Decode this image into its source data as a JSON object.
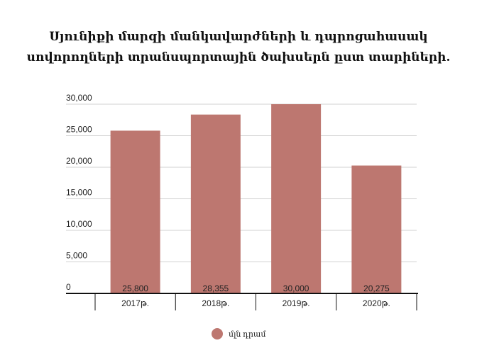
{
  "chart_data": {
    "type": "bar",
    "title_lines": [
      "Սյունիքի մարզի մանկավարժների և դպրոցահասակ",
      "սովորողների տրանսպորտային ծախսերն ըստ տարիների."
    ],
    "categories": [
      "2017թ.",
      "2018թ.",
      "2019թ.",
      "2020թ."
    ],
    "series": [
      {
        "name": "մլն դրամ",
        "values": [
          25800,
          28355,
          30000,
          20275
        ],
        "value_labels": [
          "25,800",
          "28,355",
          "30,000",
          "20,275"
        ]
      }
    ],
    "y_ticks": [
      "0",
      "5,000",
      "10,000",
      "15,000",
      "20,000",
      "25,000",
      "30,000"
    ],
    "ylim": [
      0,
      30000
    ],
    "grid": true,
    "legend_position": "bottom",
    "colors": {
      "bar": "#bd7770",
      "grid": "#d0d0d0",
      "axis": "#111111"
    }
  }
}
